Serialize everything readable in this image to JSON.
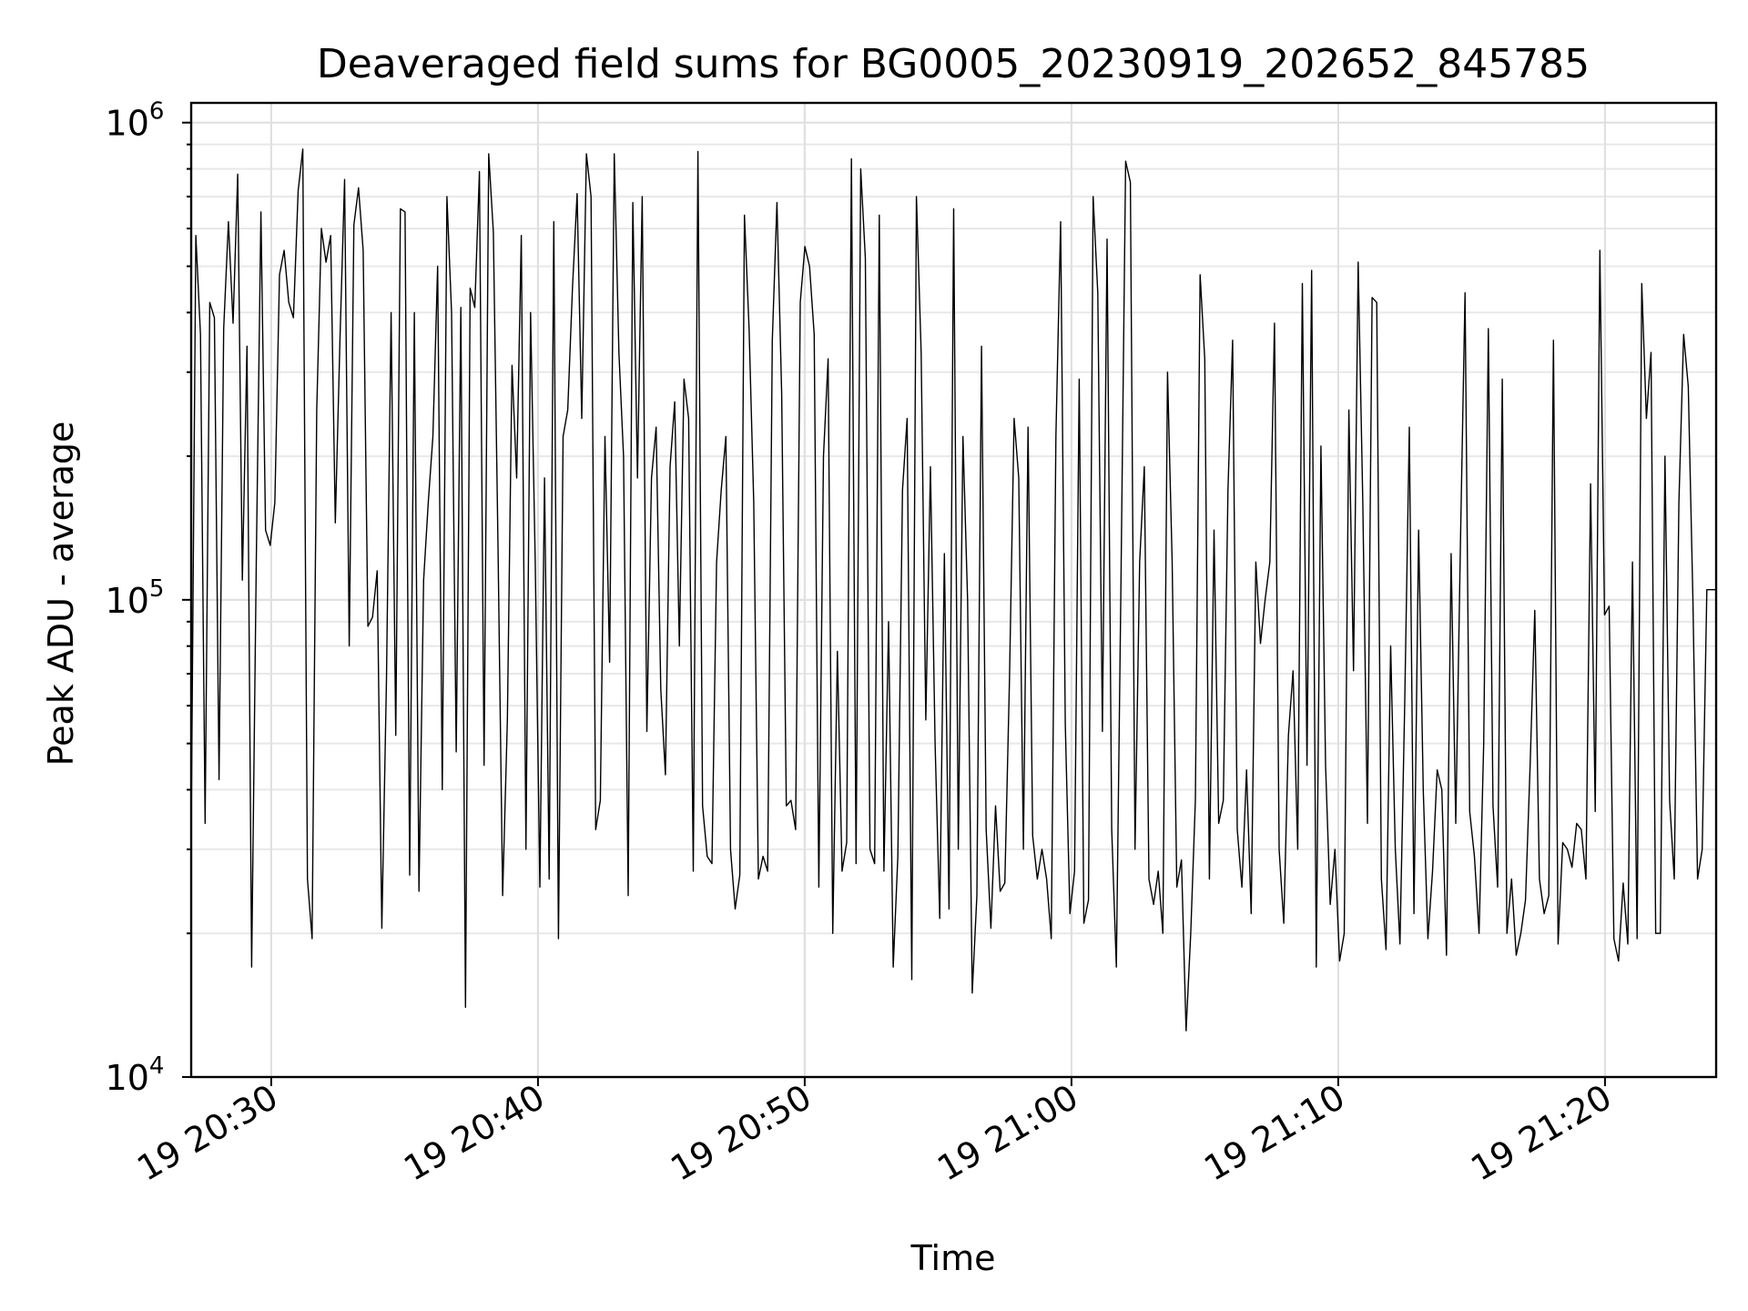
{
  "chart_data": {
    "type": "line",
    "title": "Deaveraged field sums for BG0005_20230919_202652_845785",
    "xlabel": "Time",
    "ylabel": "Peak ADU - average",
    "y_scale": "log",
    "ylim": [
      10000,
      1100000
    ],
    "y_ticks": [
      {
        "value": 10000,
        "base": "10",
        "exp": "4"
      },
      {
        "value": 100000,
        "base": "10",
        "exp": "5"
      },
      {
        "value": 1000000,
        "base": "10",
        "exp": "6"
      }
    ],
    "xlim": [
      "2023-09-19 20:27:00",
      "2023-09-19 21:24:10"
    ],
    "x_ticks": [
      {
        "value": "2023-09-19 20:30:00",
        "label": "19 20:30"
      },
      {
        "value": "2023-09-19 20:40:00",
        "label": "19 20:40"
      },
      {
        "value": "2023-09-19 20:50:00",
        "label": "19 20:50"
      },
      {
        "value": "2023-09-19 21:00:00",
        "label": "19 21:00"
      },
      {
        "value": "2023-09-19 21:10:00",
        "label": "19 21:10"
      },
      {
        "value": "2023-09-19 21:20:00",
        "label": "19 21:20"
      }
    ],
    "grid": true,
    "line_color": "#000000",
    "series": [
      {
        "x_start": "2023-09-19 20:27:00",
        "x_end": "2023-09-19 21:24:10",
        "values": [
          32000,
          580000,
          360000,
          34000,
          420000,
          390000,
          42000,
          370000,
          620000,
          380000,
          780000,
          110000,
          340000,
          17000,
          120000,
          650000,
          140000,
          130000,
          160000,
          480000,
          540000,
          420000,
          390000,
          720000,
          880000,
          26000,
          19500,
          250000,
          600000,
          510000,
          580000,
          145000,
          350000,
          760000,
          80000,
          610000,
          730000,
          540000,
          88000,
          92000,
          115000,
          20500,
          68000,
          400000,
          52000,
          660000,
          650000,
          26500,
          400000,
          24500,
          110000,
          160000,
          220000,
          500000,
          40000,
          700000,
          400000,
          48000,
          410000,
          14000,
          450000,
          410000,
          790000,
          45000,
          860000,
          590000,
          130000,
          24000,
          56000,
          310000,
          180000,
          580000,
          30000,
          400000,
          120000,
          25000,
          180000,
          26000,
          620000,
          19500,
          220000,
          250000,
          450000,
          710000,
          240000,
          860000,
          700000,
          33000,
          38000,
          220000,
          74000,
          860000,
          330000,
          200000,
          24000,
          680000,
          180000,
          700000,
          53000,
          180000,
          230000,
          65000,
          43000,
          190000,
          260000,
          80000,
          290000,
          240000,
          27000,
          870000,
          37000,
          29000,
          28000,
          120000,
          170000,
          220000,
          30000,
          22500,
          26500,
          640000,
          370000,
          160000,
          26000,
          29000,
          27000,
          350000,
          680000,
          270000,
          37000,
          38000,
          33000,
          420000,
          550000,
          500000,
          360000,
          25000,
          200000,
          320000,
          20000,
          78000,
          27000,
          31000,
          840000,
          28000,
          800000,
          520000,
          30000,
          28000,
          640000,
          27000,
          90000,
          17000,
          29000,
          170000,
          240000,
          16000,
          700000,
          330000,
          56000,
          190000,
          50000,
          21500,
          125000,
          22500,
          660000,
          30000,
          220000,
          100000,
          15000,
          24000,
          340000,
          33000,
          20500,
          37000,
          24500,
          25500,
          68000,
          240000,
          180000,
          30000,
          230000,
          32000,
          26000,
          30000,
          26000,
          19500,
          220000,
          620000,
          55000,
          22000,
          27000,
          290000,
          21000,
          23500,
          700000,
          440000,
          53000,
          570000,
          33000,
          17000,
          110000,
          830000,
          750000,
          30000,
          120000,
          190000,
          26000,
          23000,
          27000,
          20000,
          300000,
          120000,
          25000,
          28500,
          12500,
          20000,
          38000,
          480000,
          320000,
          26000,
          140000,
          34000,
          38000,
          170000,
          350000,
          33000,
          25000,
          44000,
          22000,
          120000,
          81000,
          100000,
          120000,
          380000,
          30000,
          21000,
          52000,
          71000,
          30000,
          460000,
          45000,
          490000,
          17000,
          210000,
          45000,
          23000,
          30000,
          17500,
          20000,
          250000,
          71000,
          510000,
          160000,
          34000,
          430000,
          420000,
          26000,
          18500,
          80000,
          30000,
          19000,
          60000,
          230000,
          22000,
          140000,
          40000,
          19500,
          27000,
          44000,
          40000,
          18000,
          125000,
          34000,
          130000,
          440000,
          36000,
          29000,
          20000,
          50000,
          370000,
          37000,
          25000,
          290000,
          20000,
          26000,
          18000,
          20000,
          23500,
          45000,
          95000,
          26000,
          22000,
          24000,
          350000,
          19000,
          31000,
          30000,
          27500,
          34000,
          33000,
          26000,
          175000,
          36000,
          540000,
          93000,
          97000,
          19500,
          17500,
          25500,
          19000,
          120000,
          19500,
          460000,
          240000,
          330000,
          20000,
          20000,
          200000,
          38000,
          26000,
          160000,
          360000,
          280000,
          100000,
          26000,
          30000,
          105000,
          105000,
          105000
        ]
      }
    ]
  }
}
